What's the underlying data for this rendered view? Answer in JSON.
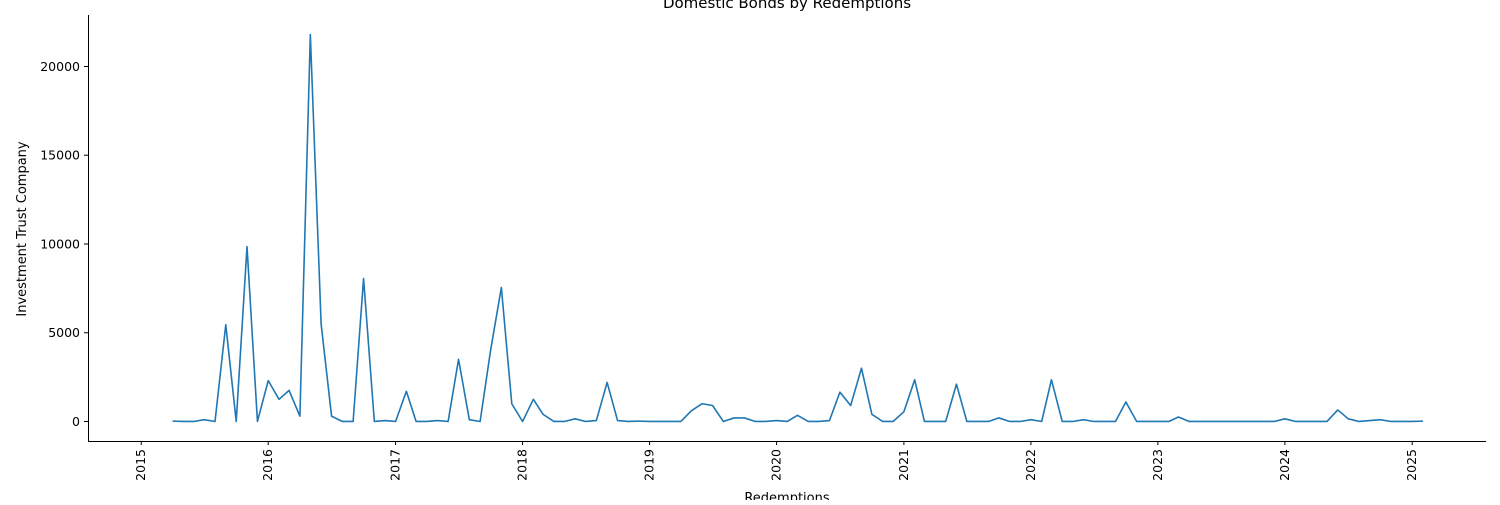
{
  "chart_data": {
    "type": "line",
    "title": "Domestic Bonds by Redemptions",
    "xlabel": "Redemptions",
    "ylabel": "Investment Trust Company",
    "x_scale": "date",
    "xlim": [
      "2014-08-01",
      "2025-08-01"
    ],
    "ylim": [
      -1100,
      22900
    ],
    "x_ticks": [
      "2015",
      "2016",
      "2017",
      "2018",
      "2019",
      "2020",
      "2021",
      "2022",
      "2023",
      "2024",
      "2025"
    ],
    "y_ticks": [
      0,
      5000,
      10000,
      15000,
      20000
    ],
    "grid": false,
    "legend": "none",
    "line_color": "#1f77b4",
    "series": [
      {
        "x": [
          "2015-04",
          "2015-05",
          "2015-06",
          "2015-07",
          "2015-08",
          "2015-09",
          "2015-10",
          "2015-11",
          "2015-12",
          "2016-01",
          "2016-02",
          "2016-03",
          "2016-04",
          "2016-05",
          "2016-06",
          "2016-07",
          "2016-08",
          "2016-09",
          "2016-10",
          "2016-11",
          "2016-12",
          "2017-01",
          "2017-02",
          "2017-03",
          "2017-04",
          "2017-05",
          "2017-06",
          "2017-07",
          "2017-08",
          "2017-09",
          "2017-10",
          "2017-11",
          "2017-12",
          "2018-01",
          "2018-02",
          "2018-03",
          "2018-04",
          "2018-05",
          "2018-06",
          "2018-07",
          "2018-08",
          "2018-09",
          "2018-10",
          "2018-11",
          "2018-12",
          "2019-01",
          "2019-02",
          "2019-03",
          "2019-04",
          "2019-05",
          "2019-06",
          "2019-07",
          "2019-08",
          "2019-09",
          "2019-10",
          "2019-11",
          "2019-12",
          "2020-01",
          "2020-02",
          "2020-03",
          "2020-04",
          "2020-05",
          "2020-06",
          "2020-07",
          "2020-08",
          "2020-09",
          "2020-10",
          "2020-11",
          "2020-12",
          "2021-01",
          "2021-02",
          "2021-03",
          "2021-04",
          "2021-05",
          "2021-06",
          "2021-07",
          "2021-08",
          "2021-09",
          "2021-10",
          "2021-11",
          "2021-12",
          "2022-01",
          "2022-02",
          "2022-03",
          "2022-04",
          "2022-05",
          "2022-06",
          "2022-07",
          "2022-08",
          "2022-09",
          "2022-10",
          "2022-11",
          "2022-12",
          "2023-01",
          "2023-02",
          "2023-03",
          "2023-04",
          "2023-05",
          "2023-06",
          "2023-07",
          "2023-08",
          "2023-09",
          "2023-10",
          "2023-11",
          "2023-12",
          "2024-01",
          "2024-02",
          "2024-03",
          "2024-04",
          "2024-05",
          "2024-06",
          "2024-07",
          "2024-08",
          "2024-09",
          "2024-10",
          "2024-11",
          "2024-12",
          "2025-01",
          "2025-02"
        ],
        "y": [
          20,
          0,
          0,
          100,
          0,
          5450,
          0,
          9850,
          0,
          2300,
          1250,
          1750,
          300,
          21800,
          5500,
          300,
          0,
          0,
          8050,
          0,
          50,
          0,
          1700,
          0,
          0,
          50,
          0,
          3500,
          100,
          0,
          4000,
          7550,
          1000,
          0,
          1250,
          400,
          0,
          0,
          150,
          0,
          50,
          2200,
          50,
          0,
          20,
          0,
          0,
          0,
          0,
          600,
          1000,
          900,
          0,
          200,
          200,
          0,
          0,
          50,
          0,
          350,
          0,
          0,
          50,
          1650,
          900,
          3000,
          400,
          0,
          0,
          550,
          2350,
          0,
          0,
          0,
          2100,
          0,
          0,
          0,
          200,
          0,
          0,
          100,
          0,
          2350,
          0,
          0,
          100,
          0,
          0,
          0,
          1100,
          0,
          0,
          0,
          0,
          250,
          0,
          0,
          0,
          0,
          0,
          0,
          0,
          0,
          0,
          150,
          0,
          0,
          0,
          0,
          650,
          150,
          0,
          50,
          100,
          0,
          0,
          0,
          20
        ]
      }
    ]
  }
}
